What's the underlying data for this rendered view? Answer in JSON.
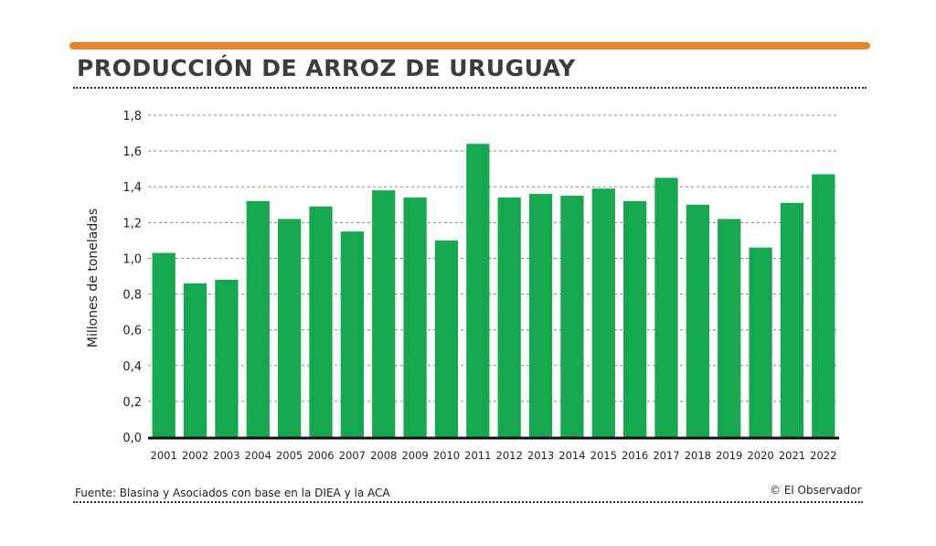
{
  "title": "PRODUCCIÓN DE ARROZ DE URUGUAY",
  "source": "Fuente: Blasina y Asociados con base en la DIEA y la ACA",
  "credit": "© El Observador",
  "colors": {
    "accent": "#e5842a",
    "bar": "#16a84f",
    "grid": "#888888"
  },
  "chart_data": {
    "type": "bar",
    "title": "PRODUCCIÓN DE ARROZ DE URUGUAY",
    "xlabel": "",
    "ylabel": "Millones de toneladas",
    "ylim": [
      0,
      1.8
    ],
    "yticks": [
      "0,0",
      "0,2",
      "0,4",
      "0,6",
      "0,8",
      "1,0",
      "1,2",
      "1,4",
      "1,6",
      "1,8"
    ],
    "grid": true,
    "categories": [
      "2001",
      "2002",
      "2003",
      "2004",
      "2005",
      "2006",
      "2007",
      "2008",
      "2009",
      "2010",
      "2011",
      "2012",
      "2013",
      "2014",
      "2015",
      "2016",
      "2017",
      "2018",
      "2019",
      "2020",
      "2021",
      "2022"
    ],
    "values": [
      1.03,
      0.86,
      0.88,
      1.32,
      1.22,
      1.29,
      1.15,
      1.38,
      1.34,
      1.1,
      1.64,
      1.34,
      1.36,
      1.35,
      1.39,
      1.32,
      1.45,
      1.3,
      1.22,
      1.06,
      1.31,
      1.47
    ]
  }
}
